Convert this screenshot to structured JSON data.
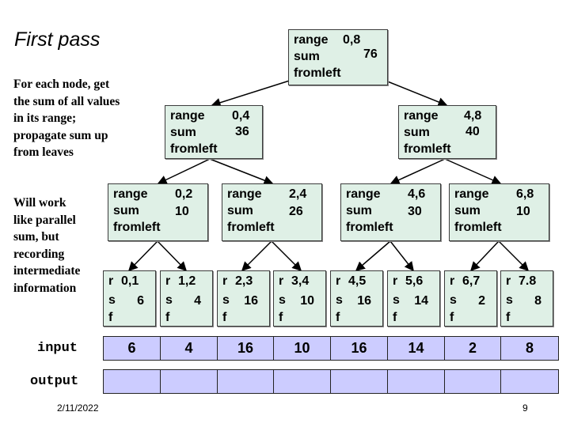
{
  "title": "First pass",
  "description_1": [
    "For each node, get",
    "the sum of all values",
    "in its range;",
    "propagate sum up",
    "from leaves"
  ],
  "description_2": [
    "Will work",
    "like parallel",
    "sum, but",
    "recording",
    "intermediate",
    "information"
  ],
  "node_labels": {
    "range": "range",
    "sum": "sum",
    "fromleft": "fromleft",
    "r": "r",
    "s": "s",
    "f": "f"
  },
  "tree": {
    "root": {
      "range": "0,8",
      "sum": "76"
    },
    "level1": [
      {
        "range": "0,4",
        "sum": "36"
      },
      {
        "range": "4,8",
        "sum": "40"
      }
    ],
    "level2": [
      {
        "range": "0,2",
        "sum": "10"
      },
      {
        "range": "2,4",
        "sum": "26"
      },
      {
        "range": "4,6",
        "sum": "30"
      },
      {
        "range": "6,8",
        "sum": "10"
      }
    ],
    "leaves": [
      {
        "range": "0,1",
        "sum": "6"
      },
      {
        "range": "1,2",
        "sum": "4"
      },
      {
        "range": "2,3",
        "sum": "16"
      },
      {
        "range": "3,4",
        "sum": "10"
      },
      {
        "range": "4,5",
        "sum": "16"
      },
      {
        "range": "5,6",
        "sum": "14"
      },
      {
        "range": "6,7",
        "sum": "2"
      },
      {
        "range": "7.8",
        "sum": "8"
      }
    ]
  },
  "input": {
    "label": "input",
    "values": [
      "6",
      "4",
      "16",
      "10",
      "16",
      "14",
      "2",
      "8"
    ]
  },
  "output": {
    "label": "output",
    "values": [
      "",
      "",
      "",
      "",
      "",
      "",
      "",
      ""
    ]
  },
  "footer": {
    "date": "2/11/2022",
    "page": "9"
  },
  "colors": {
    "node_fill": "#dff0e6",
    "array_fill": "#ccccff"
  }
}
